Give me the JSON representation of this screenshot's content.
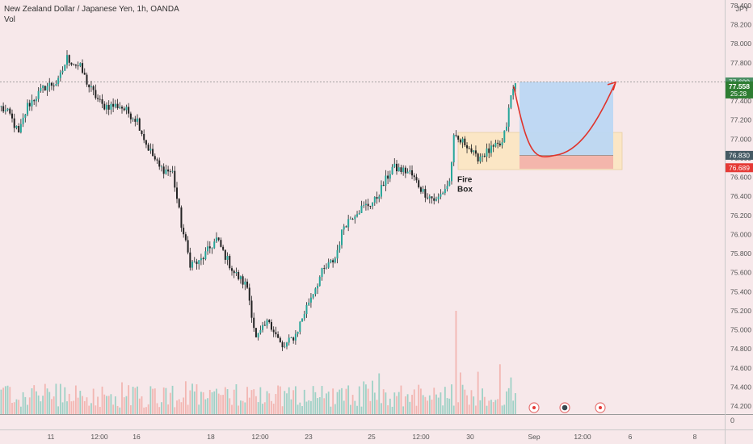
{
  "header": {
    "title": "New Zealand Dollar / Japanese Yen, 1h, OANDA",
    "volume_label": "Vol",
    "currency": "JPY"
  },
  "colors": {
    "background": "#f7e8ea",
    "up": "#26a69a",
    "down": "#ef5350",
    "candle": "#222222",
    "axis_text": "#555555",
    "target_zone": "#bcd7f3",
    "stop_zone": "#f3b3ab",
    "demand_zone": "#fbe6c5",
    "arc": "#e0342b",
    "price_badge": "#2e7d32",
    "entry_badge": "#455a64",
    "stop_badge": "#e53935",
    "event_icon": "#e57373"
  },
  "annotations": {
    "zone_label": "Fire Box",
    "zone_label_line1": "Fire",
    "zone_label_line2": "Box"
  },
  "badges": {
    "target": "77.600",
    "current": "77.558",
    "timer": "25:28",
    "entry": "76.830",
    "stop": "76.689"
  },
  "volume_axis_label": "0",
  "events": [
    {
      "type": "economic-event"
    },
    {
      "type": "dividends-event"
    },
    {
      "type": "economic-event"
    }
  ],
  "chart_data": {
    "type": "candlestick",
    "title": "New Zealand Dollar / Japanese Yen, 1h, OANDA",
    "xlabel": "",
    "ylabel": "",
    "ylim": [
      74.08,
      78.45
    ],
    "y_ticks": [
      "78.400",
      "78.200",
      "78.000",
      "77.800",
      "77.600",
      "77.400",
      "77.200",
      "77.000",
      "76.800",
      "76.600",
      "76.400",
      "76.200",
      "76.000",
      "75.800",
      "75.600",
      "75.400",
      "75.200",
      "75.000",
      "74.800",
      "74.600",
      "74.400",
      "74.200"
    ],
    "x_ticks": [
      "11",
      "12:00",
      "16",
      "18",
      "12:00",
      "23",
      "25",
      "12:00",
      "30",
      "Sep",
      "12:00",
      "6",
      "8"
    ],
    "grid": false,
    "series": [
      {
        "name": "NZDJPY",
        "anchors": [
          {
            "t": 0,
            "price": 77.33
          },
          {
            "t": 4,
            "price": 77.25
          },
          {
            "t": 8,
            "price": 77.05
          },
          {
            "t": 12,
            "price": 77.35
          },
          {
            "t": 20,
            "price": 77.55
          },
          {
            "t": 26,
            "price": 77.6
          },
          {
            "t": 30,
            "price": 77.85
          },
          {
            "t": 36,
            "price": 77.75
          },
          {
            "t": 40,
            "price": 77.55
          },
          {
            "t": 46,
            "price": 77.35
          },
          {
            "t": 54,
            "price": 77.35
          },
          {
            "t": 62,
            "price": 77.2
          },
          {
            "t": 66,
            "price": 76.95
          },
          {
            "t": 72,
            "price": 76.7
          },
          {
            "t": 78,
            "price": 76.65
          },
          {
            "t": 82,
            "price": 76.1
          },
          {
            "t": 86,
            "price": 75.7
          },
          {
            "t": 90,
            "price": 75.7
          },
          {
            "t": 98,
            "price": 75.95
          },
          {
            "t": 106,
            "price": 75.6
          },
          {
            "t": 112,
            "price": 75.45
          },
          {
            "t": 116,
            "price": 74.9
          },
          {
            "t": 122,
            "price": 75.1
          },
          {
            "t": 128,
            "price": 74.8
          },
          {
            "t": 134,
            "price": 74.95
          },
          {
            "t": 140,
            "price": 75.3
          },
          {
            "t": 146,
            "price": 75.6
          },
          {
            "t": 152,
            "price": 75.75
          },
          {
            "t": 156,
            "price": 76.1
          },
          {
            "t": 162,
            "price": 76.25
          },
          {
            "t": 170,
            "price": 76.35
          },
          {
            "t": 178,
            "price": 76.7
          },
          {
            "t": 186,
            "price": 76.65
          },
          {
            "t": 192,
            "price": 76.45
          },
          {
            "t": 198,
            "price": 76.35
          },
          {
            "t": 204,
            "price": 76.55
          },
          {
            "t": 206,
            "price": 77.0
          },
          {
            "t": 212,
            "price": 76.95
          },
          {
            "t": 216,
            "price": 76.8
          },
          {
            "t": 224,
            "price": 76.9
          },
          {
            "t": 228,
            "price": 76.95
          },
          {
            "t": 230,
            "price": 77.15
          },
          {
            "t": 232,
            "price": 77.45
          },
          {
            "t": 234,
            "price": 77.58
          }
        ]
      }
    ],
    "current_price": 77.558,
    "target_level": 77.6,
    "entry_level": 76.83,
    "stop_level": 76.689,
    "demand_zone": {
      "low": 76.68,
      "high": 77.07
    },
    "projected_path": [
      {
        "t": 235,
        "price": 77.55
      },
      {
        "t": 262,
        "price": 76.83
      },
      {
        "t": 295,
        "price": 77.58
      }
    ]
  }
}
